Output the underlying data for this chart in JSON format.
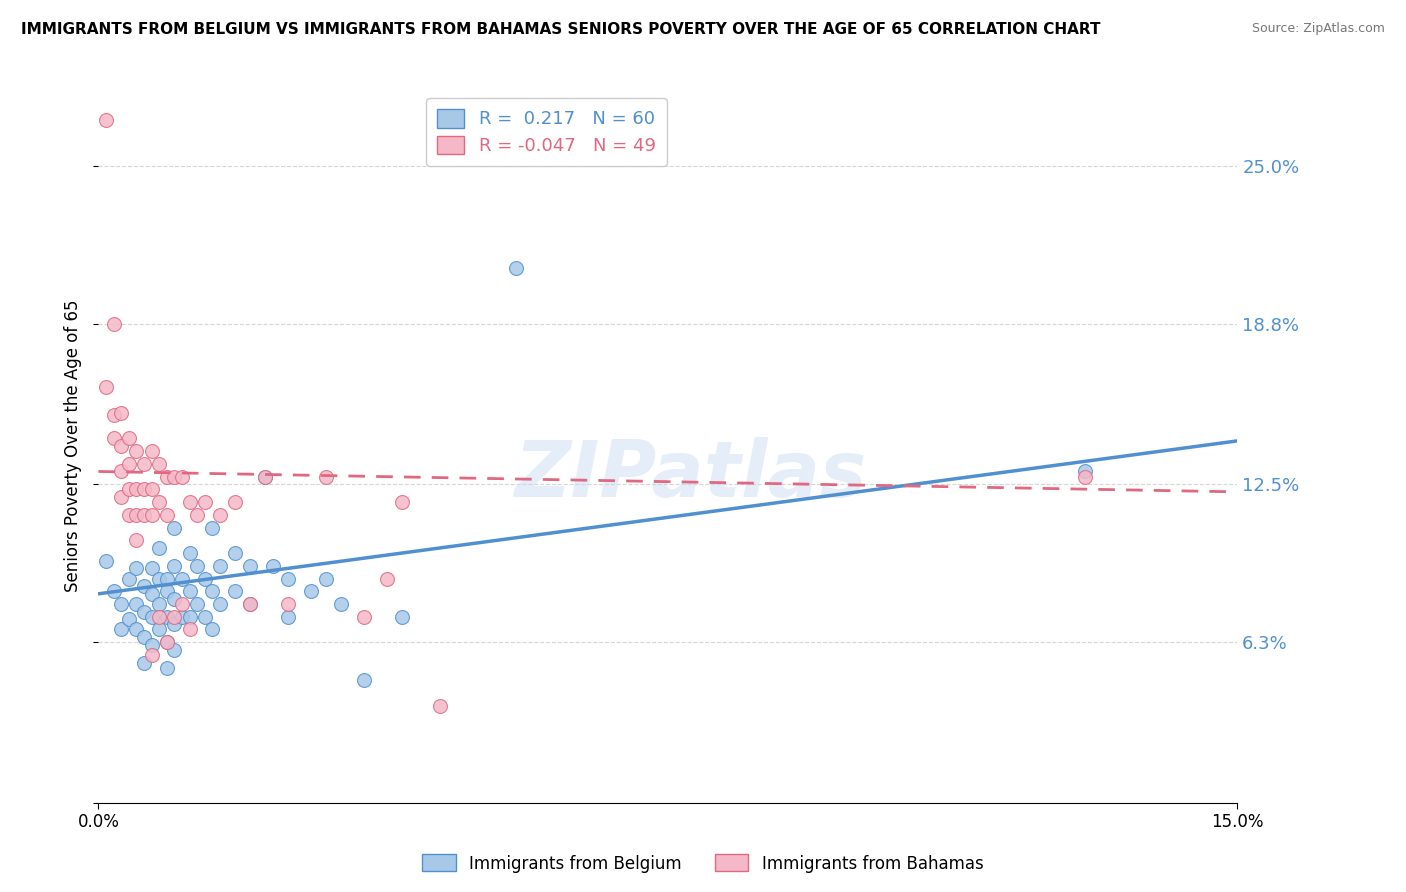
{
  "title": "IMMIGRANTS FROM BELGIUM VS IMMIGRANTS FROM BAHAMAS SENIORS POVERTY OVER THE AGE OF 65 CORRELATION CHART",
  "source": "Source: ZipAtlas.com",
  "ylabel": "Seniors Poverty Over the Age of 65",
  "xlim": [
    0.0,
    0.15
  ],
  "ylim": [
    0.0,
    0.28
  ],
  "yticks": [
    0.0,
    0.063,
    0.125,
    0.188,
    0.25
  ],
  "ytick_labels": [
    "",
    "6.3%",
    "12.5%",
    "18.8%",
    "25.0%"
  ],
  "xticks": [
    0.0,
    0.15
  ],
  "xtick_labels": [
    "0.0%",
    "15.0%"
  ],
  "belgium_R": 0.217,
  "belgium_N": 60,
  "bahamas_R": -0.047,
  "bahamas_N": 49,
  "belgium_color": "#a8c8e8",
  "bahamas_color": "#f4b8c8",
  "belgium_line_color": "#5090d0",
  "bahamas_line_color": "#e06880",
  "belgium_points": [
    [
      0.001,
      0.095
    ],
    [
      0.002,
      0.083
    ],
    [
      0.003,
      0.078
    ],
    [
      0.003,
      0.068
    ],
    [
      0.004,
      0.088
    ],
    [
      0.004,
      0.072
    ],
    [
      0.005,
      0.092
    ],
    [
      0.005,
      0.078
    ],
    [
      0.005,
      0.068
    ],
    [
      0.006,
      0.085
    ],
    [
      0.006,
      0.075
    ],
    [
      0.006,
      0.065
    ],
    [
      0.006,
      0.055
    ],
    [
      0.007,
      0.092
    ],
    [
      0.007,
      0.082
    ],
    [
      0.007,
      0.073
    ],
    [
      0.007,
      0.062
    ],
    [
      0.008,
      0.1
    ],
    [
      0.008,
      0.088
    ],
    [
      0.008,
      0.078
    ],
    [
      0.008,
      0.068
    ],
    [
      0.009,
      0.088
    ],
    [
      0.009,
      0.083
    ],
    [
      0.009,
      0.073
    ],
    [
      0.009,
      0.063
    ],
    [
      0.009,
      0.053
    ],
    [
      0.01,
      0.108
    ],
    [
      0.01,
      0.093
    ],
    [
      0.01,
      0.08
    ],
    [
      0.01,
      0.07
    ],
    [
      0.01,
      0.06
    ],
    [
      0.011,
      0.088
    ],
    [
      0.011,
      0.073
    ],
    [
      0.012,
      0.098
    ],
    [
      0.012,
      0.083
    ],
    [
      0.012,
      0.073
    ],
    [
      0.013,
      0.093
    ],
    [
      0.013,
      0.078
    ],
    [
      0.014,
      0.088
    ],
    [
      0.014,
      0.073
    ],
    [
      0.015,
      0.108
    ],
    [
      0.015,
      0.083
    ],
    [
      0.015,
      0.068
    ],
    [
      0.016,
      0.093
    ],
    [
      0.016,
      0.078
    ],
    [
      0.018,
      0.098
    ],
    [
      0.018,
      0.083
    ],
    [
      0.02,
      0.093
    ],
    [
      0.02,
      0.078
    ],
    [
      0.022,
      0.128
    ],
    [
      0.023,
      0.093
    ],
    [
      0.025,
      0.088
    ],
    [
      0.025,
      0.073
    ],
    [
      0.028,
      0.083
    ],
    [
      0.03,
      0.088
    ],
    [
      0.032,
      0.078
    ],
    [
      0.035,
      0.048
    ],
    [
      0.04,
      0.073
    ],
    [
      0.055,
      0.21
    ],
    [
      0.13,
      0.13
    ]
  ],
  "bahamas_points": [
    [
      0.001,
      0.268
    ],
    [
      0.001,
      0.163
    ],
    [
      0.002,
      0.188
    ],
    [
      0.002,
      0.152
    ],
    [
      0.002,
      0.143
    ],
    [
      0.003,
      0.153
    ],
    [
      0.003,
      0.14
    ],
    [
      0.003,
      0.13
    ],
    [
      0.003,
      0.12
    ],
    [
      0.004,
      0.143
    ],
    [
      0.004,
      0.133
    ],
    [
      0.004,
      0.123
    ],
    [
      0.004,
      0.113
    ],
    [
      0.005,
      0.138
    ],
    [
      0.005,
      0.123
    ],
    [
      0.005,
      0.113
    ],
    [
      0.005,
      0.103
    ],
    [
      0.006,
      0.133
    ],
    [
      0.006,
      0.123
    ],
    [
      0.006,
      0.113
    ],
    [
      0.007,
      0.138
    ],
    [
      0.007,
      0.123
    ],
    [
      0.007,
      0.113
    ],
    [
      0.007,
      0.058
    ],
    [
      0.008,
      0.133
    ],
    [
      0.008,
      0.118
    ],
    [
      0.008,
      0.073
    ],
    [
      0.009,
      0.128
    ],
    [
      0.009,
      0.113
    ],
    [
      0.009,
      0.063
    ],
    [
      0.01,
      0.128
    ],
    [
      0.01,
      0.073
    ],
    [
      0.011,
      0.128
    ],
    [
      0.011,
      0.078
    ],
    [
      0.012,
      0.118
    ],
    [
      0.012,
      0.068
    ],
    [
      0.013,
      0.113
    ],
    [
      0.014,
      0.118
    ],
    [
      0.016,
      0.113
    ],
    [
      0.018,
      0.118
    ],
    [
      0.02,
      0.078
    ],
    [
      0.022,
      0.128
    ],
    [
      0.025,
      0.078
    ],
    [
      0.03,
      0.128
    ],
    [
      0.035,
      0.073
    ],
    [
      0.038,
      0.088
    ],
    [
      0.04,
      0.118
    ],
    [
      0.045,
      0.038
    ],
    [
      0.13,
      0.128
    ]
  ],
  "bel_line_x0": 0.0,
  "bel_line_y0": 0.082,
  "bel_line_x1": 0.15,
  "bel_line_y1": 0.142,
  "bah_line_x0": 0.0,
  "bah_line_y0": 0.13,
  "bah_line_x1": 0.15,
  "bah_line_y1": 0.122
}
